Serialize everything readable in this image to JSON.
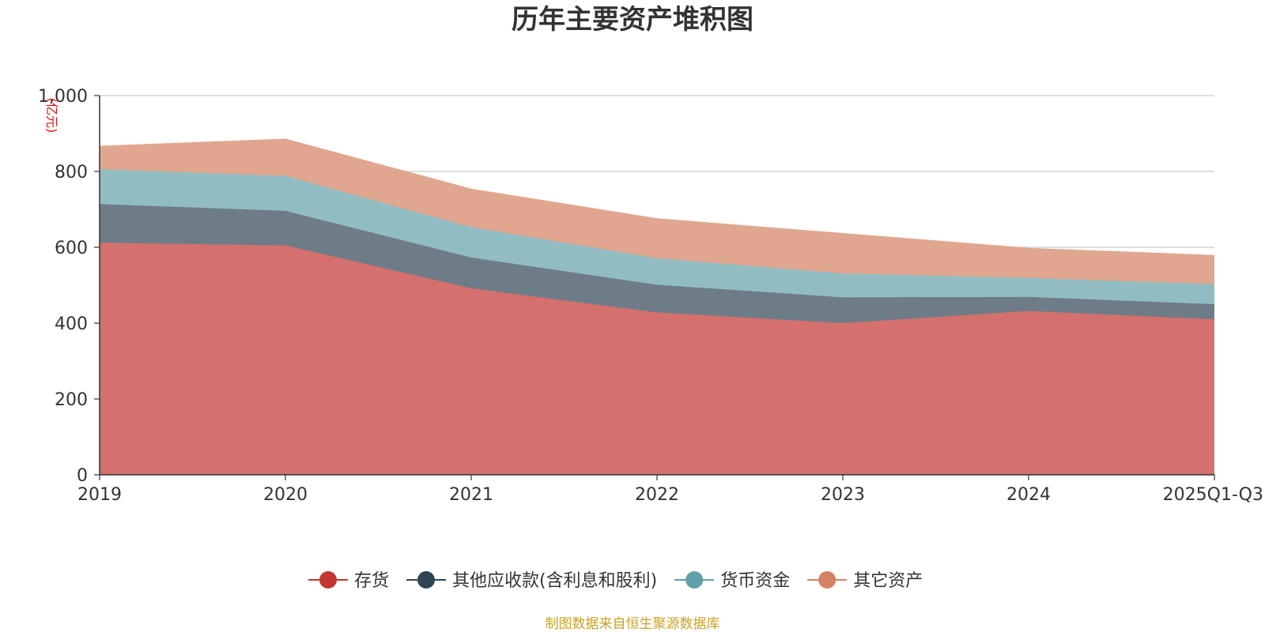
{
  "chart_data": {
    "type": "area",
    "stacked": true,
    "title": "历年主要资产堆积图",
    "unit_label": "(亿元)",
    "categories": [
      "2019",
      "2020",
      "2021",
      "2022",
      "2023",
      "2024",
      "2025Q1-Q3"
    ],
    "ylim": [
      0,
      1000
    ],
    "yticks": [
      0,
      200,
      400,
      600,
      800,
      1000
    ],
    "ytick_labels": [
      "0",
      "200",
      "400",
      "600",
      "800",
      "1,000"
    ],
    "grid": true,
    "legend_position": "bottom",
    "series": [
      {
        "name": "存货",
        "color": "#c23531",
        "fill": "#d4706d",
        "values": [
          612,
          605,
          492,
          428,
          400,
          432,
          410
        ]
      },
      {
        "name": "其他应收款(含利息和股利)",
        "color": "#2f4554",
        "fill": "#6e7c87",
        "values": [
          102,
          91,
          81,
          73,
          68,
          37,
          40
        ]
      },
      {
        "name": "货币资金",
        "color": "#61a0a8",
        "fill": "#91bcc2",
        "values": [
          92,
          92,
          80,
          70,
          63,
          50,
          53
        ]
      },
      {
        "name": "其它资产",
        "color": "#d48265",
        "fill": "#e0a68f",
        "values": [
          60,
          97,
          100,
          104,
          105,
          78,
          75
        ]
      }
    ],
    "source_note": "制图数据来自恒生聚源数据库"
  }
}
